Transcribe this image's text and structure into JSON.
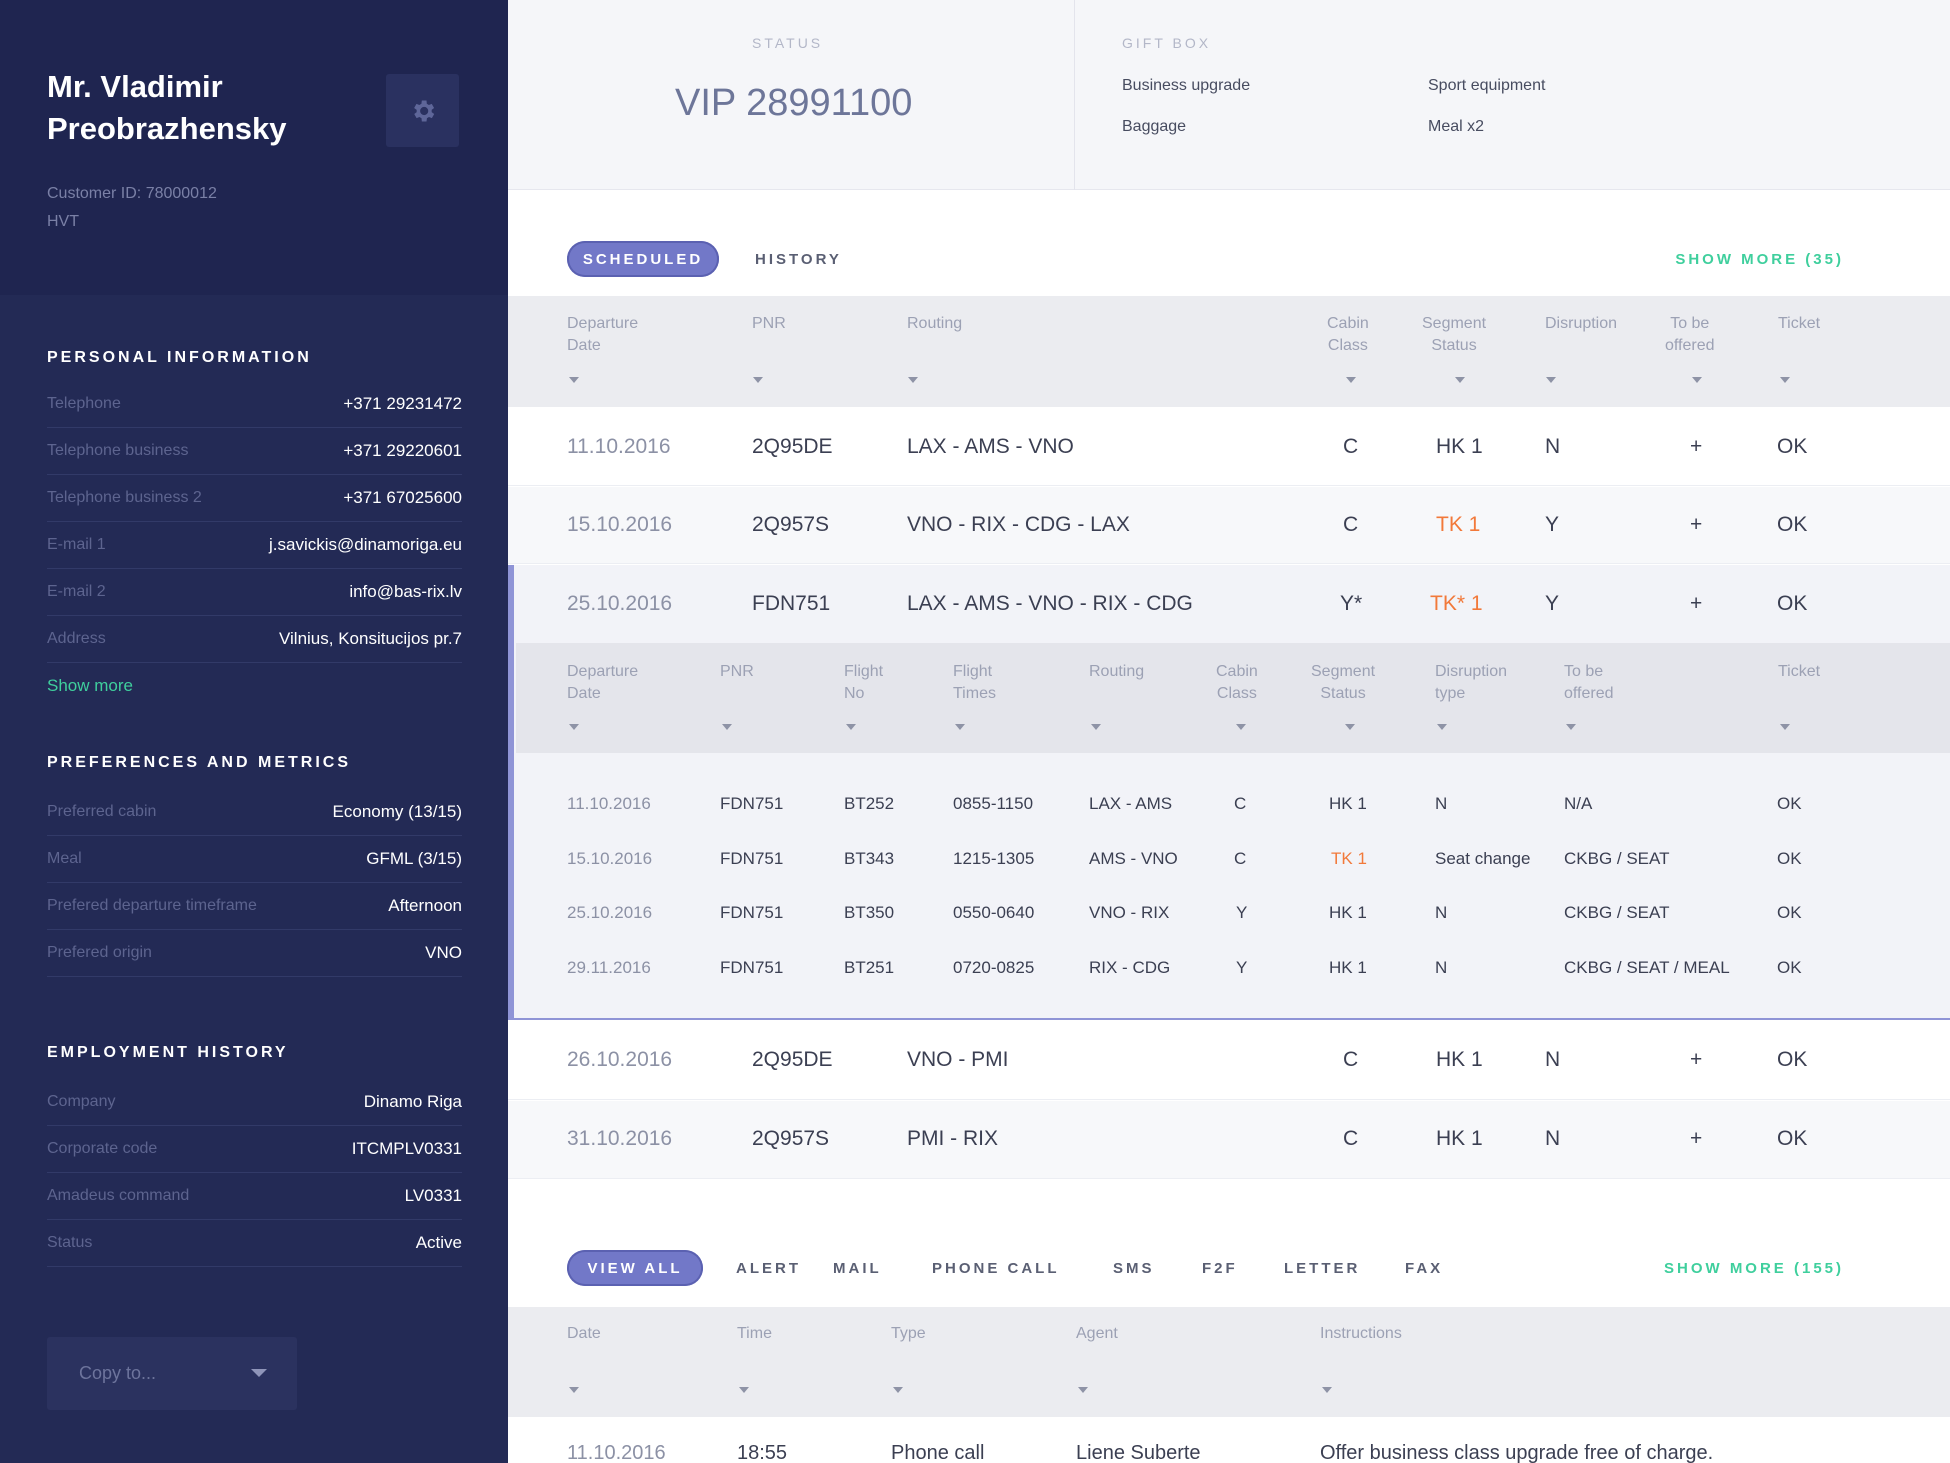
{
  "customer": {
    "name_line1": "Mr. Vladimir",
    "name_line2": "Preobrazhensky",
    "customer_id": "Customer ID: 78000012",
    "tier": "HVT"
  },
  "personal": {
    "title": "PERSONAL INFORMATION",
    "rows": [
      {
        "label": "Telephone",
        "value": "+371 29231472"
      },
      {
        "label": "Telephone business",
        "value": "+371 29220601"
      },
      {
        "label": "Telephone business 2",
        "value": "+371 67025600"
      },
      {
        "label": "E-mail 1",
        "value": "j.savickis@dinamoriga.eu"
      },
      {
        "label": "E-mail 2",
        "value": "info@bas-rix.lv"
      },
      {
        "label": "Address",
        "value": "Vilnius, Konsitucijos pr.7"
      }
    ],
    "show_more": "Show more"
  },
  "preferences": {
    "title": "PREFERENCES AND METRICS",
    "rows": [
      {
        "label": "Preferred cabin",
        "value": "Economy (13/15)"
      },
      {
        "label": "Meal",
        "value": "GFML (3/15)"
      },
      {
        "label": "Prefered departure timeframe",
        "value": "Afternoon"
      },
      {
        "label": "Prefered origin",
        "value": "VNO"
      }
    ]
  },
  "employment": {
    "title": "EMPLOYMENT HISTORY",
    "rows": [
      {
        "label": "Company",
        "value": "Dinamo Riga"
      },
      {
        "label": "Corporate code",
        "value": "ITCMPLV0331"
      },
      {
        "label": "Amadeus command",
        "value": "LV0331"
      },
      {
        "label": "Status",
        "value": "Active"
      }
    ]
  },
  "copy_to": "Copy to...",
  "status": {
    "caption": "STATUS",
    "value": "VIP 28991100"
  },
  "gift_box": {
    "caption": "GIFT BOX",
    "items": [
      "Business upgrade",
      "Sport equipment",
      "Baggage",
      "Meal x2"
    ]
  },
  "flights": {
    "tabs": [
      "SCHEDULED",
      "HISTORY"
    ],
    "show_more": "SHOW MORE (35)",
    "headers": {
      "departure_date": [
        "Departure",
        "Date"
      ],
      "pnr": "PNR",
      "routing": "Routing",
      "cabin_class": [
        "Cabin",
        "Class"
      ],
      "segment_status": [
        "Segment",
        "Status"
      ],
      "disruption": "Disruption",
      "to_be_offered": [
        "To be",
        "offered"
      ],
      "ticket": "Ticket"
    },
    "rows": [
      {
        "date": "11.10.2016",
        "pnr": "2Q95DE",
        "routing": "LAX - AMS - VNO",
        "cabin": "C",
        "status": "HK 1",
        "disruption": "N",
        "offered": "+",
        "ticket": "OK"
      },
      {
        "date": "15.10.2016",
        "pnr": "2Q957S",
        "routing": "VNO - RIX - CDG - LAX",
        "cabin": "C",
        "status": "TK 1",
        "disruption": "Y",
        "offered": "+",
        "ticket": "OK"
      },
      {
        "date": "25.10.2016",
        "pnr": "FDN751",
        "routing": "LAX - AMS - VNO - RIX - CDG",
        "cabin": "Y*",
        "status": "TK* 1",
        "disruption": "Y",
        "offered": "+",
        "ticket": "OK"
      },
      {
        "date": "26.10.2016",
        "pnr": "2Q95DE",
        "routing": "VNO - PMI",
        "cabin": "C",
        "status": "HK 1",
        "disruption": "N",
        "offered": "+",
        "ticket": "OK"
      },
      {
        "date": "31.10.2016",
        "pnr": "2Q957S",
        "routing": "PMI - RIX",
        "cabin": "C",
        "status": "HK 1",
        "disruption": "N",
        "offered": "+",
        "ticket": "OK"
      }
    ],
    "segments": {
      "headers": {
        "departure_date": [
          "Departure",
          "Date"
        ],
        "pnr": "PNR",
        "flight_no": [
          "Flight",
          "No"
        ],
        "flight_times": [
          "Flight",
          "Times"
        ],
        "routing": "Routing",
        "cabin_class": [
          "Cabin",
          "Class"
        ],
        "segment_status": [
          "Segment",
          "Status"
        ],
        "disruption_type": [
          "Disruption",
          "type"
        ],
        "to_be_offered": [
          "To be",
          "offered"
        ],
        "ticket": "Ticket"
      },
      "rows": [
        {
          "date": "11.10.2016",
          "pnr": "FDN751",
          "flight": "BT252",
          "times": "0855-1150",
          "routing": "LAX - AMS",
          "cabin": "C",
          "status": "HK 1",
          "disruption": "N",
          "offered": "N/A",
          "ticket": "OK"
        },
        {
          "date": "15.10.2016",
          "pnr": "FDN751",
          "flight": "BT343",
          "times": "1215-1305",
          "routing": "AMS - VNO",
          "cabin": "C",
          "status": "TK 1",
          "disruption": "Seat change",
          "offered": "CKBG / SEAT",
          "ticket": "OK"
        },
        {
          "date": "25.10.2016",
          "pnr": "FDN751",
          "flight": "BT350",
          "times": "0550-0640",
          "routing": "VNO - RIX",
          "cabin": "Y",
          "status": "HK 1",
          "disruption": "N",
          "offered": "CKBG / SEAT",
          "ticket": "OK"
        },
        {
          "date": "29.11.2016",
          "pnr": "FDN751",
          "flight": "BT251",
          "times": "0720-0825",
          "routing": "RIX - CDG",
          "cabin": "Y",
          "status": "HK 1",
          "disruption": "N",
          "offered": "CKBG / SEAT / MEAL",
          "ticket": "OK"
        }
      ]
    }
  },
  "communications": {
    "tabs": [
      "VIEW ALL",
      "ALERT",
      "MAIL",
      "PHONE CALL",
      "SMS",
      "F2F",
      "LETTER",
      "FAX"
    ],
    "show_more": "SHOW MORE (155)",
    "headers": {
      "date": "Date",
      "time": "Time",
      "type": "Type",
      "agent": "Agent",
      "instructions": "Instructions"
    },
    "rows": [
      {
        "date": "11.10.2016",
        "time": "18:55",
        "type": "Phone call",
        "agent": "Liene Suberte",
        "instructions": "Offer business class upgrade free of charge."
      }
    ]
  },
  "colors": {
    "sidebar": "#232a55",
    "accent": "#7278c8",
    "green": "#3fcf9d",
    "orange": "#f2793a"
  },
  "icons": {
    "settings": "gear-icon",
    "dropdown": "chevron-down-icon",
    "sort": "sort-caret-icon"
  }
}
